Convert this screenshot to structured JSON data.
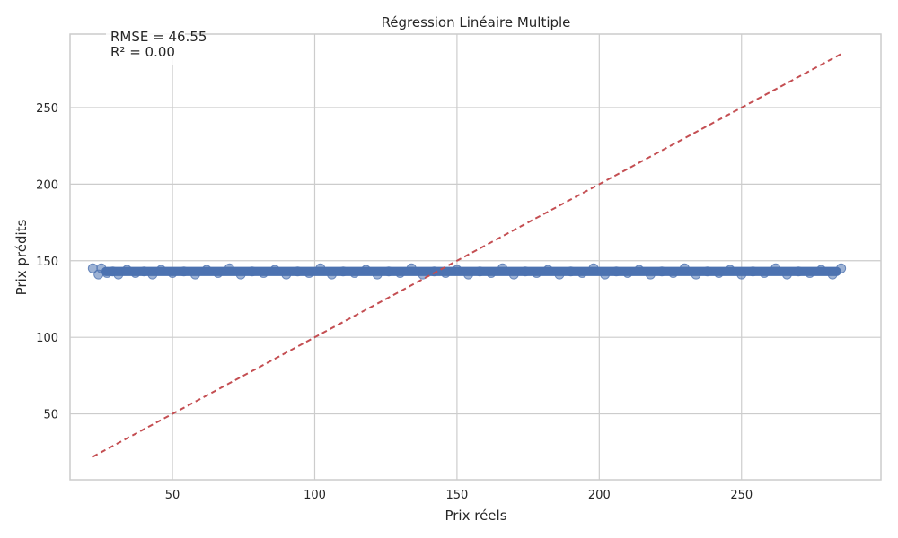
{
  "chart_data": {
    "type": "scatter",
    "title": "Régression Linéaire Multiple",
    "xlabel": "Prix réels",
    "ylabel": "Prix prédits",
    "xlim": [
      14,
      299
    ],
    "ylim": [
      7,
      298
    ],
    "xticks": [
      50,
      100,
      150,
      200,
      250
    ],
    "yticks": [
      50,
      100,
      150,
      200,
      250
    ],
    "grid": true,
    "annotation": [
      "RMSE = 46.55",
      "R² = 0.00"
    ],
    "point_color": "#4c72b0",
    "point_alpha": 0.55,
    "reference_line": {
      "x": [
        22,
        285
      ],
      "y": [
        22,
        285
      ],
      "color": "#c44e52",
      "style": "dashed"
    },
    "series": {
      "x_range": [
        22,
        285
      ],
      "predicted_band": [
        140,
        146
      ],
      "x": [
        22,
        24,
        25,
        27,
        29,
        31,
        34,
        37,
        40,
        43,
        46,
        50,
        54,
        58,
        62,
        66,
        70,
        74,
        78,
        82,
        86,
        90,
        94,
        98,
        102,
        106,
        110,
        114,
        118,
        122,
        126,
        130,
        134,
        138,
        142,
        146,
        150,
        154,
        158,
        162,
        166,
        170,
        174,
        178,
        182,
        186,
        190,
        194,
        198,
        202,
        206,
        210,
        214,
        218,
        222,
        226,
        230,
        234,
        238,
        242,
        246,
        250,
        254,
        258,
        262,
        266,
        270,
        274,
        278,
        282,
        285
      ],
      "y": [
        145,
        141,
        145,
        142,
        143,
        141,
        144,
        142,
        143,
        141,
        144,
        142,
        143,
        141,
        144,
        142,
        145,
        141,
        143,
        142,
        144,
        141,
        143,
        142,
        145,
        141,
        143,
        142,
        144,
        141,
        143,
        142,
        145,
        141,
        143,
        142,
        144,
        141,
        143,
        142,
        145,
        141,
        143,
        142,
        144,
        141,
        143,
        142,
        145,
        141,
        143,
        142,
        144,
        141,
        143,
        142,
        145,
        141,
        143,
        142,
        144,
        141,
        143,
        142,
        145,
        141,
        143,
        142,
        144,
        141,
        145
      ]
    }
  }
}
